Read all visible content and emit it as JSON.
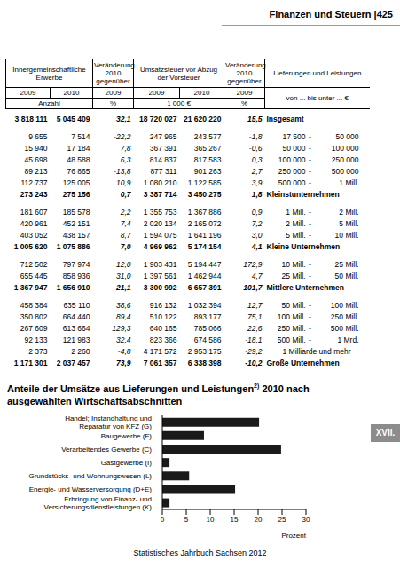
{
  "page_header": "Finanzen und Steuern |425",
  "side_tab": "XVII.",
  "footer": "Statistisches Jahrbuch Sachsen 2012",
  "table": {
    "columns": {
      "erwerbe": "Innergemeinschaftliche Erwerbe",
      "change": "Veränderung 2010 gegenüber",
      "steuer": "Umsatzsteuer vor Abzug der Vorsteuer",
      "label": "Lieferungen und Leistungen",
      "label_unit": "von ... bis unter ... €",
      "years": [
        "2009",
        "2010"
      ],
      "change_base": "2009",
      "unit_count": "Anzahl",
      "unit_pct": "%",
      "unit_money": "1 000 €"
    },
    "groups": [
      [
        {
          "cells": [
            "3 818 111",
            "5 045 409",
            "32,1",
            "18 720 027",
            "21 620 220",
            "15,5"
          ],
          "label": "Insgesamt",
          "total": true
        }
      ],
      [
        {
          "cells": [
            "9 655",
            "7 514",
            "-22,2",
            "247 965",
            "243 577",
            "-1,8"
          ],
          "label": "17 500 - 50 000",
          "total": false
        },
        {
          "cells": [
            "15 940",
            "17 184",
            "7,8",
            "367 391",
            "365 267",
            "-0,6"
          ],
          "label": "50 000 - 100 000",
          "total": false
        },
        {
          "cells": [
            "45 698",
            "48 588",
            "6,3",
            "814 837",
            "817 583",
            "0,3"
          ],
          "label": "100 000 - 250 000",
          "total": false
        },
        {
          "cells": [
            "89 213",
            "76 865",
            "-13,8",
            "877 311",
            "901 263",
            "2,7"
          ],
          "label": "250 000 - 500 000",
          "total": false
        },
        {
          "cells": [
            "112 737",
            "125 005",
            "10,9",
            "1 080 210",
            "1 122 585",
            "3,9"
          ],
          "label": "500 000 - 1 Mill.",
          "total": false
        },
        {
          "cells": [
            "273 243",
            "275 156",
            "0,7",
            "3 387 714",
            "3 450 275",
            "1,8"
          ],
          "label": "Kleinstunternehmen",
          "total": true
        }
      ],
      [
        {
          "cells": [
            "181 607",
            "185 578",
            "2,2",
            "1 355 753",
            "1 367 886",
            "0,9"
          ],
          "label": "1 Mill. - 2 Mill.",
          "total": false
        },
        {
          "cells": [
            "420 961",
            "452 151",
            "7,4",
            "2 020 134",
            "2 165 072",
            "7,2"
          ],
          "label": "2 Mill. - 5 Mill.",
          "total": false
        },
        {
          "cells": [
            "403 052",
            "438 157",
            "8,7",
            "1 594 075",
            "1 641 196",
            "3,0"
          ],
          "label": "5 Mill. - 10 Mill.",
          "total": false
        },
        {
          "cells": [
            "1 005 620",
            "1 075 886",
            "7,0",
            "4 969 962",
            "5 174 154",
            "4,1"
          ],
          "label": "Kleine Unternehmen",
          "total": true
        }
      ],
      [
        {
          "cells": [
            "712 502",
            "797 974",
            "12,0",
            "1 903 431",
            "5 194 447",
            "172,9"
          ],
          "label": "10 Mill. - 25 Mill.",
          "total": false
        },
        {
          "cells": [
            "655 445",
            "858 936",
            "31,0",
            "1 397 561",
            "1 462 944",
            "4,7"
          ],
          "label": "25 Mill. - 50 Mill.",
          "total": false
        },
        {
          "cells": [
            "1 367 947",
            "1 656 910",
            "21,1",
            "3 300 992",
            "6 657 391",
            "101,7"
          ],
          "label": "Mittlere Unternehmen",
          "total": true
        }
      ],
      [
        {
          "cells": [
            "458 384",
            "635 110",
            "38,6",
            "916 132",
            "1 032 394",
            "12,7"
          ],
          "label": "50 Mill. - 100 Mill.",
          "total": false
        },
        {
          "cells": [
            "350 802",
            "664 440",
            "89,4",
            "510 122",
            "893 177",
            "75,1"
          ],
          "label": "100 Mill. - 250 Mill.",
          "total": false
        },
        {
          "cells": [
            "267 609",
            "613 664",
            "129,3",
            "640 165",
            "785 066",
            "22,6"
          ],
          "label": "250 Mill. - 500 Mill.",
          "total": false
        },
        {
          "cells": [
            "92 133",
            "121 983",
            "32,4",
            "823 366",
            "674 586",
            "-18,1"
          ],
          "label": "500 Mill. - 1 Mrd.",
          "total": false
        },
        {
          "cells": [
            "2 373",
            "2 260",
            "-4,8",
            "4 171 572",
            "2 953 175",
            "-29,2"
          ],
          "label": "1 Milliarde und mehr",
          "total": false
        },
        {
          "cells": [
            "1 171 301",
            "2 037 457",
            "73,9",
            "7 061 357",
            "6 338 398",
            "-10,2"
          ],
          "label": "Große Unternehmen",
          "total": true
        }
      ]
    ]
  },
  "chart_data": {
    "type": "bar",
    "orientation": "horizontal",
    "title": "Anteile der Umsätze aus Lieferungen und Leistungen2) 2010 nach ausgewählten Wirtschaftsabschnitten",
    "title_footnote_mark": "2)",
    "categories": [
      "Handel; Instandhaltung und Reparatur von KFZ (G)",
      "Baugewerbe (F)",
      "Verarbeitendes Gewerbe (C)",
      "Gastgewerbe (I)",
      "Grundstücks- und Wohnungswesen (L)",
      "Energie- und Wasserversorgung (D+E)",
      "Erbringung von Finanz- und Versicherungsdienstleistungen (K)"
    ],
    "values": [
      20.2,
      8.7,
      24.8,
      1.5,
      5.6,
      15.2,
      1.5
    ],
    "color": "#1a1a1a",
    "xlim": [
      0,
      30
    ],
    "xticks": [
      0,
      5,
      10,
      15,
      20,
      25,
      30
    ],
    "xlabel": "Prozent",
    "grid": false
  }
}
